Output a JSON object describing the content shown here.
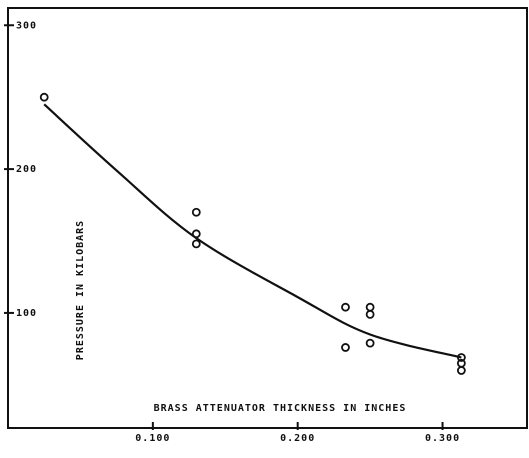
{
  "chart_data": {
    "type": "scatter",
    "x_label": "BRASS ATTENUATOR THICKNESS IN INCHES",
    "y_label": "PRESSURE IN KILOBARS",
    "xlim": [
      0,
      0.359
    ],
    "ylim": [
      20,
      312
    ],
    "xticks": [
      {
        "value": 0.1,
        "label": "0.100"
      },
      {
        "value": 0.2,
        "label": "0.200"
      },
      {
        "value": 0.3,
        "label": "0.300"
      }
    ],
    "yticks": [
      100,
      200,
      300
    ],
    "color": "#111111",
    "series": [
      {
        "type": "scatter",
        "x": [
          0.025,
          0.13,
          0.13,
          0.13,
          0.233,
          0.233,
          0.25,
          0.25,
          0.25,
          0.313,
          0.313,
          0.313
        ],
        "values": [
          250,
          170,
          155,
          148,
          104,
          76,
          104,
          99,
          79,
          69,
          65,
          60
        ]
      },
      {
        "type": "line",
        "x": [
          0.025,
          0.075,
          0.13,
          0.2,
          0.25,
          0.313
        ],
        "values": [
          245,
          199,
          152,
          111,
          85,
          69
        ]
      }
    ]
  }
}
